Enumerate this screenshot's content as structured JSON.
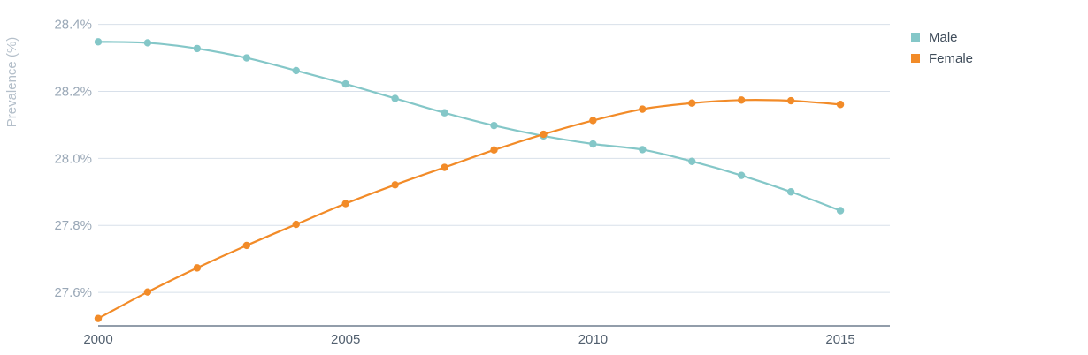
{
  "chart_data": {
    "type": "line",
    "title": "",
    "xlabel": "",
    "ylabel": "Prevalence (%)",
    "x": [
      2000,
      2001,
      2002,
      2003,
      2004,
      2005,
      2006,
      2007,
      2008,
      2009,
      2010,
      2011,
      2012,
      2013,
      2014,
      2015
    ],
    "xlim": [
      2000,
      2016
    ],
    "ylim": [
      27.5,
      28.42
    ],
    "x_ticks": [
      2000,
      2005,
      2010,
      2015
    ],
    "y_ticks": [
      27.6,
      27.8,
      28.0,
      28.2,
      28.4
    ],
    "y_tick_labels": [
      "27.6%",
      "27.8%",
      "28.0%",
      "28.2%",
      "28.4%"
    ],
    "grid": true,
    "legend_position": "top-right",
    "series": [
      {
        "name": "Male",
        "color": "#84c7c8",
        "values": [
          28.348,
          28.345,
          28.328,
          28.3,
          28.262,
          28.222,
          28.179,
          28.136,
          28.098,
          28.067,
          28.043,
          28.026,
          27.991,
          27.949,
          27.9,
          27.844
        ]
      },
      {
        "name": "Female",
        "color": "#f28b28",
        "values": [
          27.522,
          27.601,
          27.673,
          27.74,
          27.803,
          27.865,
          27.921,
          27.973,
          28.025,
          28.072,
          28.113,
          28.147,
          28.165,
          28.174,
          28.172,
          28.161
        ]
      }
    ]
  }
}
